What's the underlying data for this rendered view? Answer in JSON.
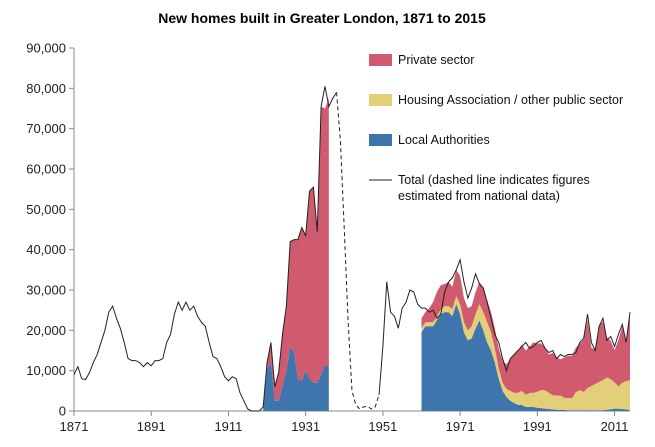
{
  "chart_data": {
    "type": "area",
    "title": "New homes built in Greater London, 1871 to 2015",
    "xlabel": "",
    "ylabel": "",
    "xlim": [
      1871,
      2015
    ],
    "ylim": [
      0,
      90000
    ],
    "x_ticks": [
      1871,
      1891,
      1911,
      1931,
      1951,
      1971,
      1991,
      2011
    ],
    "x_tick_labels": [
      "1871",
      "1891",
      "1911",
      "1931",
      "1951",
      "1971",
      "1991",
      "2011"
    ],
    "y_ticks": [
      0,
      10000,
      20000,
      30000,
      40000,
      50000,
      60000,
      70000,
      80000,
      90000
    ],
    "y_tick_labels": [
      "0",
      "10,000",
      "20,000",
      "30,000",
      "40,000",
      "50,000",
      "60,000",
      "70,000",
      "80,000",
      "90,000"
    ],
    "grid": false,
    "legend_position": "top-right",
    "colors": {
      "private": "#d05a6e",
      "housing_association": "#e2cf78",
      "local_authorities": "#3f75ad",
      "total": "#222222"
    },
    "legend": {
      "private": "Private sector",
      "housing_association": "Housing Association / other public sector",
      "local_authorities": "Local Authorities",
      "total_line1": "Total (dashed line indicates figures",
      "total_line2": "estimated from national data)"
    },
    "stacked_series": {
      "years": [
        1920,
        1921,
        1922,
        1923,
        1924,
        1925,
        1926,
        1927,
        1928,
        1929,
        1930,
        1931,
        1932,
        1933,
        1934,
        1935,
        1936,
        1937,
        1961,
        1962,
        1963,
        1964,
        1965,
        1966,
        1967,
        1968,
        1969,
        1970,
        1971,
        1972,
        1973,
        1974,
        1975,
        1976,
        1977,
        1978,
        1979,
        1980,
        1981,
        1982,
        1983,
        1984,
        1985,
        1986,
        1987,
        1988,
        1989,
        1990,
        1991,
        1992,
        1993,
        1994,
        1995,
        1996,
        1997,
        1998,
        1999,
        2000,
        2001,
        2002,
        2003,
        2004,
        2005,
        2006,
        2007,
        2008,
        2009,
        2010,
        2011,
        2012,
        2013,
        2014,
        2015
      ],
      "local_authorities": [
        500,
        10500,
        12000,
        2500,
        2500,
        6000,
        10000,
        16000,
        14500,
        8000,
        7500,
        10000,
        8000,
        7000,
        7000,
        9000,
        11500,
        11000,
        19500,
        21000,
        21000,
        21000,
        22500,
        24000,
        24500,
        24500,
        23500,
        26500,
        24000,
        19500,
        17500,
        18000,
        20500,
        22500,
        20000,
        17000,
        15000,
        12000,
        8000,
        5000,
        3500,
        2500,
        2000,
        1500,
        1500,
        1000,
        1000,
        1000,
        800,
        700,
        600,
        500,
        400,
        300,
        300,
        250,
        200,
        200,
        200,
        200,
        200,
        200,
        200,
        200,
        200,
        200,
        300,
        400,
        600,
        600,
        500,
        400,
        200
      ],
      "housing_association": [
        0,
        0,
        0,
        0,
        0,
        0,
        0,
        0,
        0,
        0,
        0,
        0,
        0,
        0,
        0,
        0,
        0,
        0,
        1000,
        1000,
        1000,
        1000,
        1000,
        1200,
        1500,
        1500,
        1800,
        2000,
        2500,
        2500,
        2500,
        3000,
        3500,
        4000,
        4500,
        5000,
        4500,
        3500,
        2500,
        2000,
        2000,
        2500,
        2500,
        3000,
        3500,
        3000,
        3500,
        3500,
        4000,
        4500,
        4500,
        4000,
        3500,
        3500,
        3500,
        3000,
        3000,
        3000,
        4500,
        5000,
        4500,
        5500,
        6000,
        6500,
        7000,
        7500,
        8000,
        7500,
        6500,
        5500,
        6500,
        7000,
        7500
      ],
      "private": [
        500,
        1500,
        5000,
        3500,
        7000,
        13000,
        16000,
        26000,
        28000,
        34500,
        38000,
        33500,
        46500,
        48500,
        37500,
        66500,
        63500,
        66500,
        2500,
        2500,
        3500,
        5000,
        6000,
        6000,
        5500,
        6000,
        5500,
        6500,
        7000,
        6000,
        5500,
        5000,
        5500,
        5500,
        6000,
        5500,
        5000,
        5000,
        5000,
        5500,
        6000,
        8000,
        9500,
        10500,
        11500,
        11000,
        11500,
        12500,
        12000,
        11500,
        10500,
        9500,
        10500,
        9500,
        9000,
        10000,
        10500,
        10500,
        11000,
        11500,
        13000,
        17000,
        9500,
        8500,
        14000,
        14500,
        10000,
        9500,
        8000,
        11500,
        14000,
        9500,
        17000
      ]
    },
    "total_series": {
      "solid_1": [
        [
          1871,
          9000
        ],
        [
          1872,
          11000
        ],
        [
          1873,
          8000
        ],
        [
          1874,
          7800
        ],
        [
          1875,
          9500
        ],
        [
          1876,
          12000
        ],
        [
          1877,
          14000
        ],
        [
          1878,
          17000
        ],
        [
          1879,
          20000
        ],
        [
          1880,
          24500
        ],
        [
          1881,
          26000
        ],
        [
          1882,
          23000
        ],
        [
          1883,
          20500
        ],
        [
          1884,
          17000
        ],
        [
          1885,
          13000
        ],
        [
          1886,
          12500
        ],
        [
          1887,
          12500
        ],
        [
          1888,
          12000
        ],
        [
          1889,
          11000
        ],
        [
          1890,
          12000
        ],
        [
          1891,
          11200
        ],
        [
          1892,
          12500
        ],
        [
          1893,
          12500
        ],
        [
          1894,
          13000
        ],
        [
          1895,
          17000
        ],
        [
          1896,
          19000
        ],
        [
          1897,
          24000
        ],
        [
          1898,
          27000
        ],
        [
          1899,
          25000
        ],
        [
          1900,
          27000
        ],
        [
          1901,
          25000
        ],
        [
          1902,
          26000
        ],
        [
          1903,
          23500
        ],
        [
          1904,
          22000
        ],
        [
          1905,
          21000
        ],
        [
          1906,
          17000
        ],
        [
          1907,
          13500
        ],
        [
          1908,
          13000
        ],
        [
          1909,
          11000
        ],
        [
          1910,
          8500
        ],
        [
          1911,
          7500
        ],
        [
          1912,
          8500
        ],
        [
          1913,
          8000
        ],
        [
          1914,
          4500
        ],
        [
          1915,
          2500
        ],
        [
          1916,
          500
        ],
        [
          1917,
          0
        ],
        [
          1918,
          0
        ],
        [
          1919,
          0
        ],
        [
          1920,
          1000
        ],
        [
          1921,
          12000
        ],
        [
          1922,
          17000
        ],
        [
          1923,
          6000
        ],
        [
          1924,
          9500
        ],
        [
          1925,
          19000
        ],
        [
          1926,
          26000
        ],
        [
          1927,
          42000
        ],
        [
          1928,
          42500
        ],
        [
          1929,
          42500
        ],
        [
          1930,
          45500
        ],
        [
          1931,
          43500
        ],
        [
          1932,
          54500
        ],
        [
          1933,
          55500
        ],
        [
          1934,
          44500
        ],
        [
          1935,
          75500
        ],
        [
          1936,
          80500
        ],
        [
          1937,
          75500
        ],
        [
          1938,
          77500
        ],
        [
          1939,
          79000
        ]
      ],
      "dashed": [
        [
          1939,
          79000
        ],
        [
          1940,
          67000
        ],
        [
          1941,
          45000
        ],
        [
          1942,
          22000
        ],
        [
          1943,
          5000
        ],
        [
          1944,
          1500
        ],
        [
          1945,
          500
        ],
        [
          1946,
          1000
        ],
        [
          1947,
          1200
        ],
        [
          1948,
          500
        ],
        [
          1949,
          1000
        ],
        [
          1950,
          4000
        ]
      ],
      "solid_2": [
        [
          1950,
          4000
        ],
        [
          1951,
          16000
        ],
        [
          1952,
          32000
        ],
        [
          1953,
          24500
        ],
        [
          1954,
          23500
        ],
        [
          1955,
          20500
        ],
        [
          1956,
          25500
        ],
        [
          1957,
          27000
        ],
        [
          1958,
          30000
        ],
        [
          1959,
          29500
        ],
        [
          1960,
          26500
        ],
        [
          1961,
          25500
        ],
        [
          1962,
          25500
        ],
        [
          1963,
          24500
        ],
        [
          1964,
          25000
        ],
        [
          1965,
          23000
        ],
        [
          1966,
          24000
        ],
        [
          1967,
          29500
        ],
        [
          1968,
          32000
        ],
        [
          1969,
          33000
        ],
        [
          1970,
          35000
        ],
        [
          1971,
          37500
        ],
        [
          1972,
          32000
        ],
        [
          1973,
          28000
        ],
        [
          1974,
          30500
        ],
        [
          1975,
          34000
        ],
        [
          1976,
          31500
        ],
        [
          1977,
          30500
        ],
        [
          1978,
          27000
        ],
        [
          1979,
          23000
        ],
        [
          1980,
          19000
        ],
        [
          1981,
          17000
        ],
        [
          1982,
          13000
        ],
        [
          1983,
          10000
        ],
        [
          1984,
          13000
        ],
        [
          1985,
          14000
        ],
        [
          1986,
          15000
        ],
        [
          1987,
          16000
        ],
        [
          1988,
          17000
        ],
        [
          1989,
          15500
        ],
        [
          1990,
          16000
        ],
        [
          1991,
          17000
        ],
        [
          1992,
          17500
        ],
        [
          1993,
          15500
        ],
        [
          1994,
          14500
        ],
        [
          1995,
          15000
        ],
        [
          1996,
          13000
        ],
        [
          1997,
          14000
        ],
        [
          1998,
          13500
        ],
        [
          1999,
          14000
        ],
        [
          2000,
          14000
        ],
        [
          2001,
          14500
        ],
        [
          2002,
          17000
        ],
        [
          2003,
          18000
        ],
        [
          2004,
          24000
        ],
        [
          2005,
          17000
        ],
        [
          2006,
          15000
        ],
        [
          2007,
          21000
        ],
        [
          2008,
          23000
        ],
        [
          2009,
          17500
        ],
        [
          2010,
          18500
        ],
        [
          2011,
          16000
        ],
        [
          2012,
          19000
        ],
        [
          2013,
          21500
        ],
        [
          2014,
          17000
        ],
        [
          2015,
          24500
        ]
      ]
    }
  }
}
